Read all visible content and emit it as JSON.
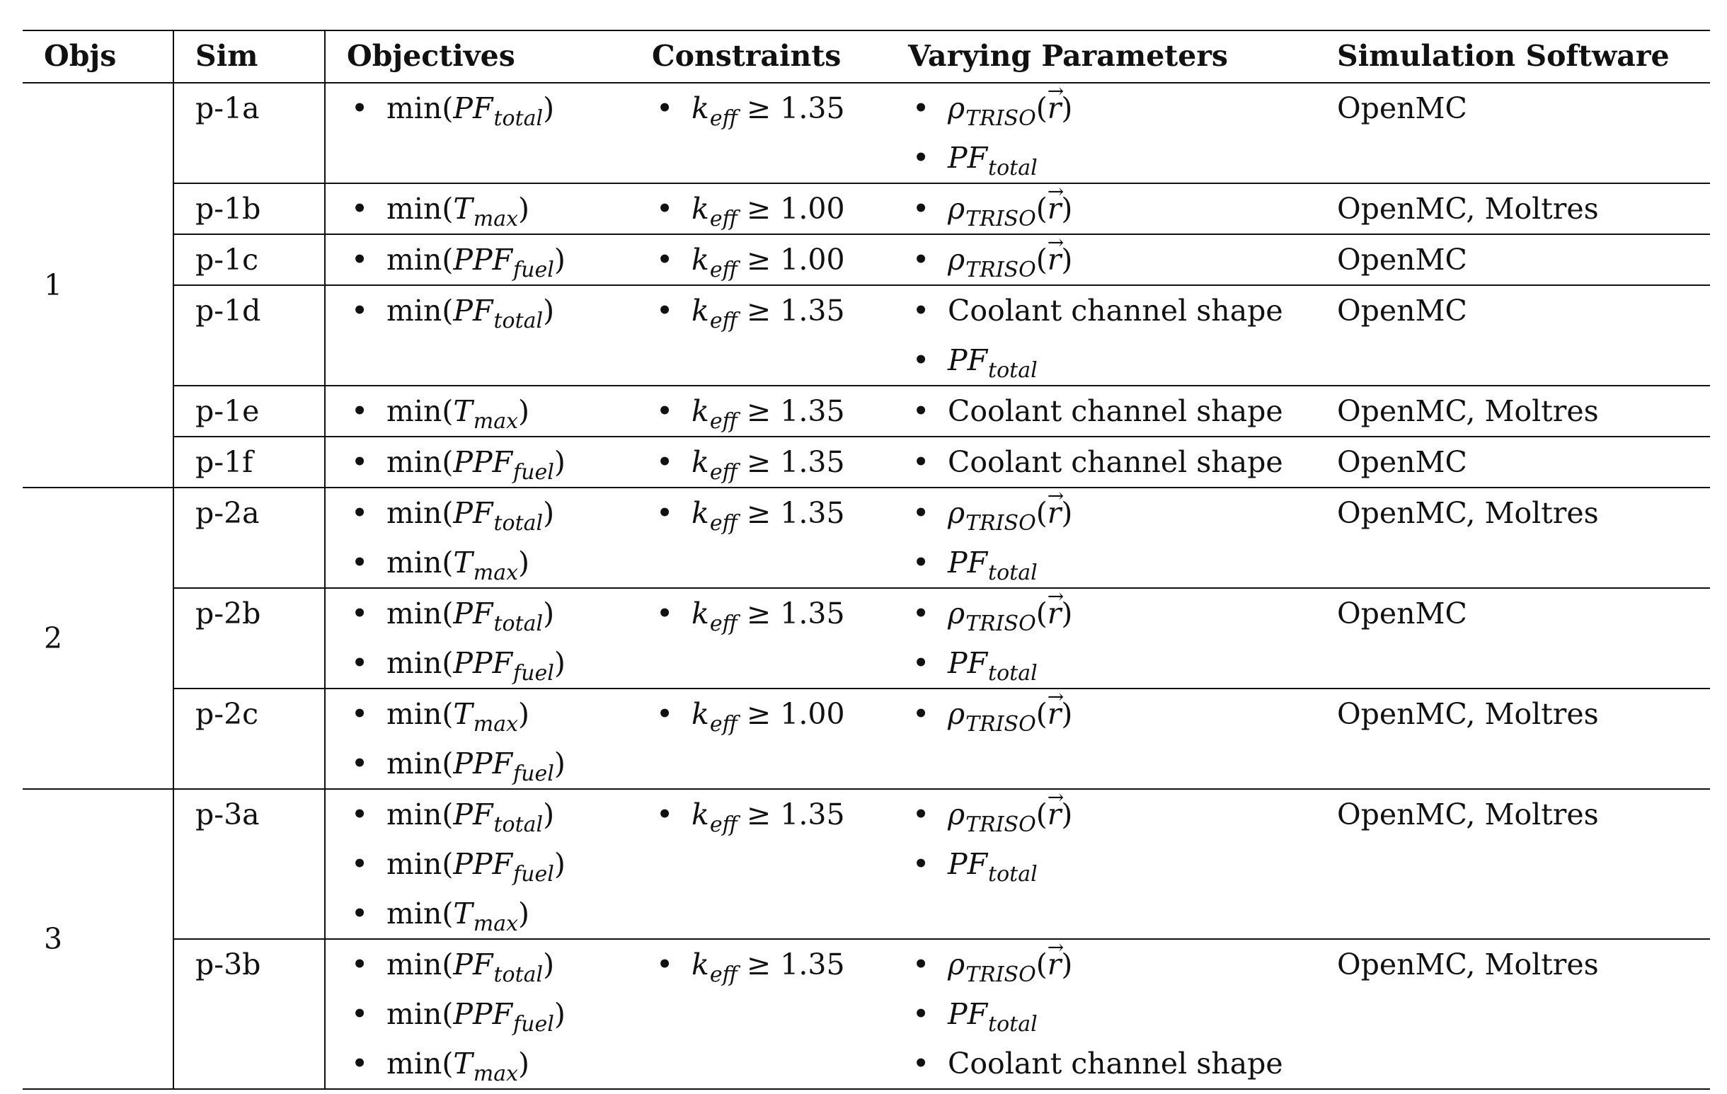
{
  "headers": [
    "Objs",
    "Sim",
    "Objectives",
    "Constraints",
    "Varying Parameters",
    "Simulation Software"
  ],
  "groups": [
    {
      "objs": "1",
      "rows": [
        {
          "sim": "p-1a",
          "objectives": [
            [
              [
                "min(",
                "n"
              ],
              [
                "PF",
                "i"
              ],
              [
                "total",
                "s"
              ],
              [
                ")",
                "n"
              ]
            ]
          ],
          "constraints": [
            [
              [
                "k",
                "i"
              ],
              [
                "eff",
                "s"
              ],
              [
                " ≥ 1.35",
                "n"
              ]
            ]
          ],
          "parameters": [
            [
              [
                "ρ",
                "i"
              ],
              [
                "TRISO",
                "s"
              ],
              [
                "(",
                "n"
              ],
              [
                "r",
                "v"
              ],
              [
                ")",
                "n"
              ]
            ],
            [
              [
                "PF",
                "i"
              ],
              [
                "total",
                "s"
              ]
            ]
          ],
          "software": "OpenMC"
        },
        {
          "sim": "p-1b",
          "objectives": [
            [
              [
                "min(",
                "n"
              ],
              [
                "T",
                "i"
              ],
              [
                "max",
                "s"
              ],
              [
                ")",
                "n"
              ]
            ]
          ],
          "constraints": [
            [
              [
                "k",
                "i"
              ],
              [
                "eff",
                "s"
              ],
              [
                " ≥ 1.00",
                "n"
              ]
            ]
          ],
          "parameters": [
            [
              [
                "ρ",
                "i"
              ],
              [
                "TRISO",
                "s"
              ],
              [
                "(",
                "n"
              ],
              [
                "r",
                "v"
              ],
              [
                ")",
                "n"
              ]
            ]
          ],
          "software": "OpenMC, Moltres"
        },
        {
          "sim": "p-1c",
          "objectives": [
            [
              [
                "min(",
                "n"
              ],
              [
                "PPF",
                "i"
              ],
              [
                "fuel",
                "s"
              ],
              [
                ")",
                "n"
              ]
            ]
          ],
          "constraints": [
            [
              [
                "k",
                "i"
              ],
              [
                "eff",
                "s"
              ],
              [
                " ≥ 1.00",
                "n"
              ]
            ]
          ],
          "parameters": [
            [
              [
                "ρ",
                "i"
              ],
              [
                "TRISO",
                "s"
              ],
              [
                "(",
                "n"
              ],
              [
                "r",
                "v"
              ],
              [
                ")",
                "n"
              ]
            ]
          ],
          "software": "OpenMC"
        },
        {
          "sim": "p-1d",
          "objectives": [
            [
              [
                "min(",
                "n"
              ],
              [
                "PF",
                "i"
              ],
              [
                "total",
                "s"
              ],
              [
                ")",
                "n"
              ]
            ]
          ],
          "constraints": [
            [
              [
                "k",
                "i"
              ],
              [
                "eff",
                "s"
              ],
              [
                " ≥ 1.35",
                "n"
              ]
            ]
          ],
          "parameters": [
            [
              [
                "Coolant channel shape",
                "n"
              ]
            ],
            [
              [
                "PF",
                "i"
              ],
              [
                "total",
                "s"
              ]
            ]
          ],
          "software": "OpenMC"
        },
        {
          "sim": "p-1e",
          "objectives": [
            [
              [
                "min(",
                "n"
              ],
              [
                "T",
                "i"
              ],
              [
                "max",
                "s"
              ],
              [
                ")",
                "n"
              ]
            ]
          ],
          "constraints": [
            [
              [
                "k",
                "i"
              ],
              [
                "eff",
                "s"
              ],
              [
                " ≥ 1.35",
                "n"
              ]
            ]
          ],
          "parameters": [
            [
              [
                "Coolant channel shape",
                "n"
              ]
            ]
          ],
          "software": "OpenMC, Moltres"
        },
        {
          "sim": "p-1f",
          "objectives": [
            [
              [
                "min(",
                "n"
              ],
              [
                "PPF",
                "i"
              ],
              [
                "fuel",
                "s"
              ],
              [
                ")",
                "n"
              ]
            ]
          ],
          "constraints": [
            [
              [
                "k",
                "i"
              ],
              [
                "eff",
                "s"
              ],
              [
                " ≥ 1.35",
                "n"
              ]
            ]
          ],
          "parameters": [
            [
              [
                "Coolant channel shape",
                "n"
              ]
            ]
          ],
          "software": "OpenMC"
        }
      ]
    },
    {
      "objs": "2",
      "rows": [
        {
          "sim": "p-2a",
          "objectives": [
            [
              [
                "min(",
                "n"
              ],
              [
                "PF",
                "i"
              ],
              [
                "total",
                "s"
              ],
              [
                ")",
                "n"
              ]
            ],
            [
              [
                "min(",
                "n"
              ],
              [
                "T",
                "i"
              ],
              [
                "max",
                "s"
              ],
              [
                ")",
                "n"
              ]
            ]
          ],
          "constraints": [
            [
              [
                "k",
                "i"
              ],
              [
                "eff",
                "s"
              ],
              [
                " ≥ 1.35",
                "n"
              ]
            ]
          ],
          "parameters": [
            [
              [
                "ρ",
                "i"
              ],
              [
                "TRISO",
                "s"
              ],
              [
                "(",
                "n"
              ],
              [
                "r",
                "v"
              ],
              [
                ")",
                "n"
              ]
            ],
            [
              [
                "PF",
                "i"
              ],
              [
                "total",
                "s"
              ]
            ]
          ],
          "software": "OpenMC, Moltres"
        },
        {
          "sim": "p-2b",
          "objectives": [
            [
              [
                "min(",
                "n"
              ],
              [
                "PF",
                "i"
              ],
              [
                "total",
                "s"
              ],
              [
                ")",
                "n"
              ]
            ],
            [
              [
                "min(",
                "n"
              ],
              [
                "PPF",
                "i"
              ],
              [
                "fuel",
                "s"
              ],
              [
                ")",
                "n"
              ]
            ]
          ],
          "constraints": [
            [
              [
                "k",
                "i"
              ],
              [
                "eff",
                "s"
              ],
              [
                " ≥ 1.35",
                "n"
              ]
            ]
          ],
          "parameters": [
            [
              [
                "ρ",
                "i"
              ],
              [
                "TRISO",
                "s"
              ],
              [
                "(",
                "n"
              ],
              [
                "r",
                "v"
              ],
              [
                ")",
                "n"
              ]
            ],
            [
              [
                "PF",
                "i"
              ],
              [
                "total",
                "s"
              ]
            ]
          ],
          "software": "OpenMC"
        },
        {
          "sim": "p-2c",
          "objectives": [
            [
              [
                "min(",
                "n"
              ],
              [
                "T",
                "i"
              ],
              [
                "max",
                "s"
              ],
              [
                ")",
                "n"
              ]
            ],
            [
              [
                "min(",
                "n"
              ],
              [
                "PPF",
                "i"
              ],
              [
                "fuel",
                "s"
              ],
              [
                ")",
                "n"
              ]
            ]
          ],
          "constraints": [
            [
              [
                "k",
                "i"
              ],
              [
                "eff",
                "s"
              ],
              [
                " ≥ 1.00",
                "n"
              ]
            ]
          ],
          "parameters": [
            [
              [
                "ρ",
                "i"
              ],
              [
                "TRISO",
                "s"
              ],
              [
                "(",
                "n"
              ],
              [
                "r",
                "v"
              ],
              [
                ")",
                "n"
              ]
            ]
          ],
          "software": "OpenMC, Moltres"
        }
      ]
    },
    {
      "objs": "3",
      "rows": [
        {
          "sim": "p-3a",
          "objectives": [
            [
              [
                "min(",
                "n"
              ],
              [
                "PF",
                "i"
              ],
              [
                "total",
                "s"
              ],
              [
                ")",
                "n"
              ]
            ],
            [
              [
                "min(",
                "n"
              ],
              [
                "PPF",
                "i"
              ],
              [
                "fuel",
                "s"
              ],
              [
                ")",
                "n"
              ]
            ],
            [
              [
                "min(",
                "n"
              ],
              [
                "T",
                "i"
              ],
              [
                "max",
                "s"
              ],
              [
                ")",
                "n"
              ]
            ]
          ],
          "constraints": [
            [
              [
                "k",
                "i"
              ],
              [
                "eff",
                "s"
              ],
              [
                " ≥ 1.35",
                "n"
              ]
            ]
          ],
          "parameters": [
            [
              [
                "ρ",
                "i"
              ],
              [
                "TRISO",
                "s"
              ],
              [
                "(",
                "n"
              ],
              [
                "r",
                "v"
              ],
              [
                ")",
                "n"
              ]
            ],
            [
              [
                "PF",
                "i"
              ],
              [
                "total",
                "s"
              ]
            ]
          ],
          "software": "OpenMC, Moltres"
        },
        {
          "sim": "p-3b",
          "objectives": [
            [
              [
                "min(",
                "n"
              ],
              [
                "PF",
                "i"
              ],
              [
                "total",
                "s"
              ],
              [
                ")",
                "n"
              ]
            ],
            [
              [
                "min(",
                "n"
              ],
              [
                "PPF",
                "i"
              ],
              [
                "fuel",
                "s"
              ],
              [
                ")",
                "n"
              ]
            ],
            [
              [
                "min(",
                "n"
              ],
              [
                "T",
                "i"
              ],
              [
                "max",
                "s"
              ],
              [
                ")",
                "n"
              ]
            ]
          ],
          "constraints": [
            [
              [
                "k",
                "i"
              ],
              [
                "eff",
                "s"
              ],
              [
                " ≥ 1.35",
                "n"
              ]
            ]
          ],
          "parameters": [
            [
              [
                "ρ",
                "i"
              ],
              [
                "TRISO",
                "s"
              ],
              [
                "(",
                "n"
              ],
              [
                "r",
                "v"
              ],
              [
                ")",
                "n"
              ]
            ],
            [
              [
                "PF",
                "i"
              ],
              [
                "total",
                "s"
              ]
            ],
            [
              [
                "Coolant channel shape",
                "n"
              ]
            ]
          ],
          "software": "OpenMC, Moltres"
        }
      ]
    }
  ]
}
